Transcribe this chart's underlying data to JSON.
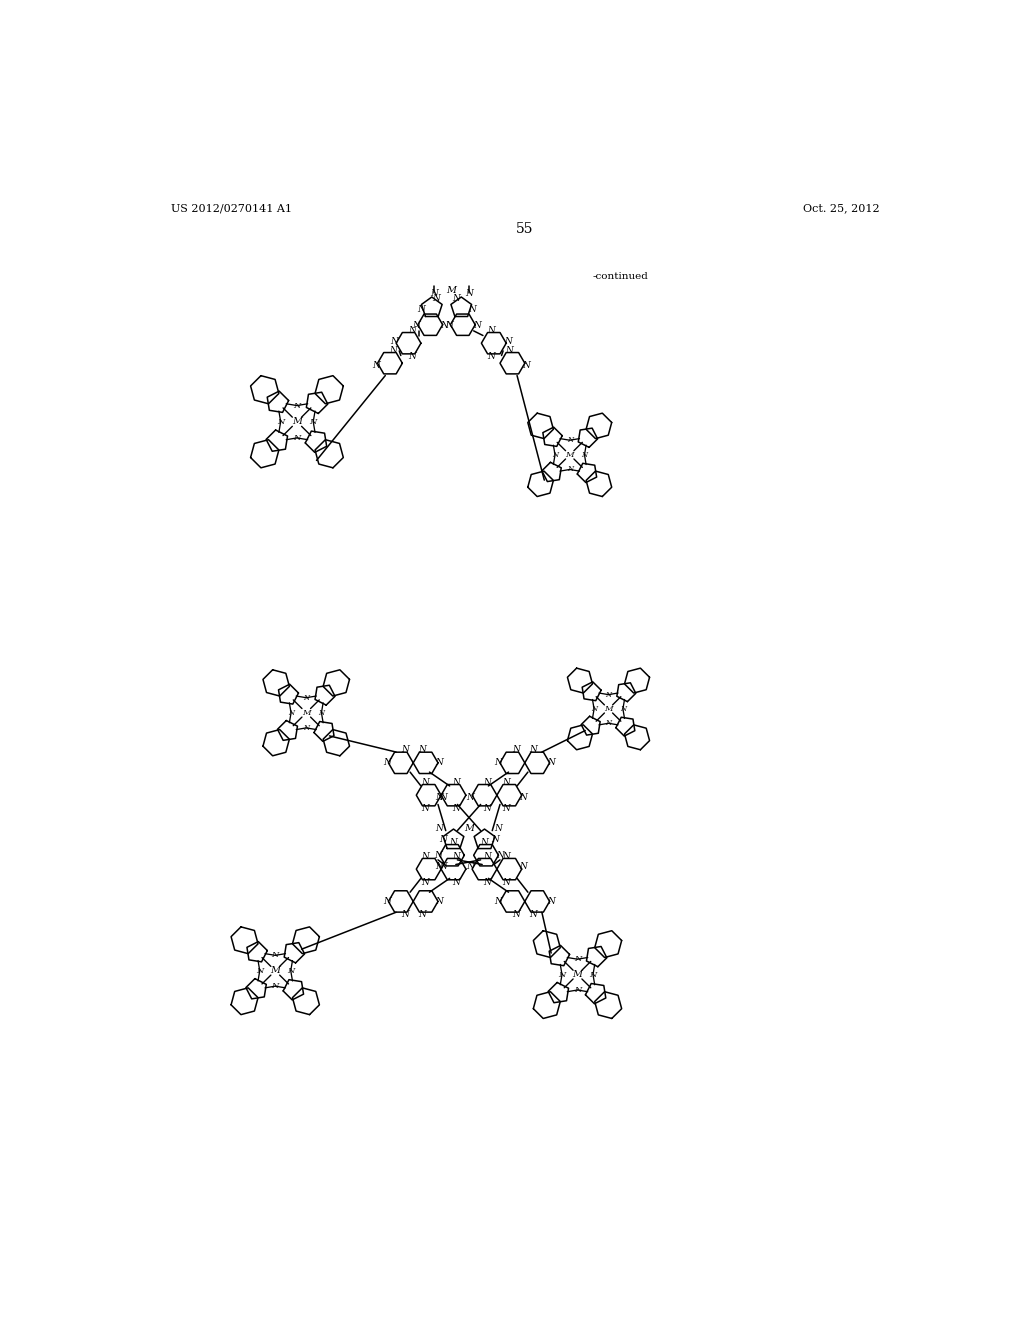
{
  "background_color": "#ffffff",
  "page_width": 10.24,
  "page_height": 13.2,
  "header_left": "US 2012/0270141 A1",
  "header_right": "Oct. 25, 2012",
  "page_number": "55",
  "continued_text": "-continued",
  "figure_dpi": 100
}
